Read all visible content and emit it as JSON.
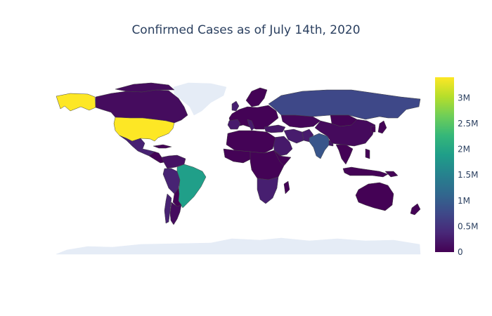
{
  "title": "Confirmed Cases as of July 14th, 2020",
  "colorscale": [
    "#440154",
    "#482878",
    "#3e4989",
    "#31688e",
    "#26828e",
    "#1f9e89",
    "#35b779",
    "#6ece58",
    "#b5de2b",
    "#fde725"
  ],
  "colorbar": {
    "min": 0,
    "max": 3400000,
    "ticks": [
      {
        "value": 0,
        "label": "0"
      },
      {
        "value": 500000,
        "label": "0.5M"
      },
      {
        "value": 1000000,
        "label": "1M"
      },
      {
        "value": 1500000,
        "label": "1.5M"
      },
      {
        "value": 2000000,
        "label": "2M"
      },
      {
        "value": 2500000,
        "label": "2.5M"
      },
      {
        "value": 3000000,
        "label": "3M"
      }
    ]
  },
  "colors": {
    "land_no_data": "#e5ecf6",
    "border": "#444444",
    "background": "#ffffff"
  },
  "chart_data": {
    "type": "choropleth",
    "metric": "Confirmed Cases",
    "z_range": [
      0,
      3400000
    ],
    "regions": [
      {
        "name": "United States",
        "value": 3430000
      },
      {
        "name": "Brazil",
        "value": 1900000
      },
      {
        "name": "India",
        "value": 910000
      },
      {
        "name": "Russia",
        "value": 740000
      },
      {
        "name": "Peru",
        "value": 330000
      },
      {
        "name": "Mexico",
        "value": 310000
      },
      {
        "name": "Chile",
        "value": 320000
      },
      {
        "name": "South Africa",
        "value": 290000
      },
      {
        "name": "Iran",
        "value": 260000
      },
      {
        "name": "Pakistan",
        "value": 255000
      },
      {
        "name": "United Kingdom",
        "value": 290000
      },
      {
        "name": "Spain",
        "value": 255000
      },
      {
        "name": "Saudi Arabia",
        "value": 235000
      },
      {
        "name": "Colombia",
        "value": 160000
      },
      {
        "name": "Turkey",
        "value": 215000
      },
      {
        "name": "Italy",
        "value": 243000
      },
      {
        "name": "Bangladesh",
        "value": 190000
      },
      {
        "name": "Canada",
        "value": 108000
      },
      {
        "name": "Argentina",
        "value": 106000
      },
      {
        "name": "China",
        "value": 85000
      },
      {
        "name": "Kazakhstan",
        "value": 60000
      },
      {
        "name": "Australia",
        "value": 10000
      }
    ]
  }
}
